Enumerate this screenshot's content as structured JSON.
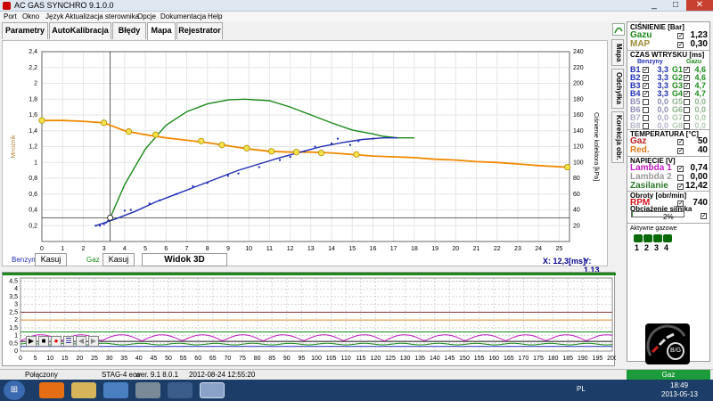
{
  "window": {
    "title": "AC GAS SYNCHRO  9.1.0.0",
    "min": "_",
    "max": "□",
    "close": "✕"
  },
  "menu": [
    "Port",
    "Okno",
    "Język",
    "Aktualizacja sterownika",
    "Opcje",
    "Dokumentacja",
    "Help"
  ],
  "tabs": [
    {
      "label": "Parametry"
    },
    {
      "label": "AutoKalibracja"
    },
    {
      "label": "Błędy"
    },
    {
      "label": "Mapa"
    },
    {
      "label": "Rejestrator"
    }
  ],
  "side_tabs": [
    {
      "label": "Mapa"
    },
    {
      "label": "Odchyłka"
    },
    {
      "label": "Korekcja obr."
    }
  ],
  "chart_data": {
    "type": "scatter",
    "xlabel": "Czas wtrysku [ms]",
    "ylabel": "Mnożnik",
    "y2label": "Ciśnienie kolektora [kPa]",
    "xlim": [
      0,
      25.5
    ],
    "ylim": [
      0,
      2.4
    ],
    "y2lim": [
      0,
      240
    ],
    "x_ticks": [
      "0",
      "1",
      "2",
      "3",
      "4",
      "5",
      "6",
      "7",
      "8",
      "9",
      "10",
      "11",
      "12",
      "13",
      "14",
      "15",
      "16",
      "17",
      "18",
      "19",
      "20",
      "21",
      "22",
      "23",
      "24",
      "25"
    ],
    "y_ticks": [
      "0,2",
      "0,4",
      "0,6",
      "0,8",
      "1",
      "1,2",
      "1,4",
      "1,6",
      "1,8",
      "2",
      "2,2",
      "2,4"
    ],
    "y2_ticks": [
      "20",
      "40",
      "60",
      "80",
      "100",
      "120",
      "140",
      "160",
      "180",
      "200",
      "220",
      "240"
    ],
    "cursor_x": 3.3,
    "ref_y": 0.3,
    "multiplier_curve": {
      "color": "#f08a00",
      "points": [
        [
          0,
          1.53
        ],
        [
          1,
          1.53
        ],
        [
          2,
          1.52
        ],
        [
          3,
          1.5
        ],
        [
          4,
          1.4
        ],
        [
          5,
          1.35
        ],
        [
          6,
          1.31
        ],
        [
          7,
          1.28
        ],
        [
          8,
          1.25
        ],
        [
          9,
          1.21
        ],
        [
          10,
          1.17
        ],
        [
          11,
          1.14
        ],
        [
          12,
          1.13
        ],
        [
          13,
          1.13
        ],
        [
          14,
          1.12
        ],
        [
          15,
          1.1
        ],
        [
          16,
          1.08
        ],
        [
          17,
          1.07
        ],
        [
          18,
          1.06
        ],
        [
          19,
          1.04
        ],
        [
          20,
          1.03
        ],
        [
          21,
          1.01
        ],
        [
          22,
          1.0
        ],
        [
          23,
          0.98
        ],
        [
          24,
          0.96
        ],
        [
          25.4,
          0.94
        ]
      ],
      "markers": [
        [
          0,
          1.53
        ],
        [
          3,
          1.5
        ],
        [
          4.2,
          1.39
        ],
        [
          5.5,
          1.35
        ],
        [
          7.7,
          1.27
        ],
        [
          8.7,
          1.22
        ],
        [
          9.9,
          1.18
        ],
        [
          11.1,
          1.14
        ],
        [
          12.3,
          1.13
        ],
        [
          13.5,
          1.12
        ],
        [
          15.2,
          1.1
        ],
        [
          25.4,
          0.94
        ]
      ]
    },
    "gas_curve": {
      "color": "#1a8a1a",
      "points": [
        [
          3.3,
          0.3
        ],
        [
          4,
          0.72
        ],
        [
          5,
          1.17
        ],
        [
          6,
          1.47
        ],
        [
          7,
          1.64
        ],
        [
          8,
          1.74
        ],
        [
          9,
          1.79
        ],
        [
          9.8,
          1.8
        ],
        [
          11,
          1.78
        ],
        [
          12,
          1.7
        ],
        [
          13,
          1.6
        ],
        [
          14,
          1.5
        ],
        [
          15,
          1.41
        ],
        [
          16,
          1.36
        ],
        [
          16.5,
          1.33
        ],
        [
          17.2,
          1.31
        ],
        [
          18,
          1.31
        ]
      ]
    },
    "petrol_curve": {
      "color": "#1f2db3",
      "points": [
        [
          2.6,
          0.2
        ],
        [
          3.5,
          0.28
        ],
        [
          4.5,
          0.38
        ],
        [
          5.5,
          0.5
        ],
        [
          6.5,
          0.6
        ],
        [
          7.5,
          0.7
        ],
        [
          8.5,
          0.8
        ],
        [
          9.5,
          0.9
        ],
        [
          10.5,
          0.98
        ],
        [
          11.5,
          1.06
        ],
        [
          12.5,
          1.13
        ],
        [
          13.5,
          1.2
        ],
        [
          14.5,
          1.25
        ],
        [
          15.5,
          1.29
        ],
        [
          16.5,
          1.31
        ],
        [
          17.2,
          1.31
        ]
      ]
    },
    "petrol_points": [
      [
        2.6,
        0.2
      ],
      [
        2.8,
        0.2
      ],
      [
        3.0,
        0.22
      ],
      [
        3.1,
        0.24
      ],
      [
        3.2,
        0.26
      ],
      [
        3.3,
        0.28
      ],
      [
        3.4,
        0.3
      ],
      [
        4.0,
        0.39
      ],
      [
        4.3,
        0.4
      ],
      [
        5.2,
        0.48
      ],
      [
        5.7,
        0.52
      ],
      [
        6.5,
        0.6
      ],
      [
        7.3,
        0.7
      ],
      [
        8.0,
        0.74
      ],
      [
        9.0,
        0.83
      ],
      [
        9.5,
        0.86
      ],
      [
        10.5,
        0.94
      ],
      [
        11.5,
        1.03
      ],
      [
        12.0,
        1.07
      ],
      [
        12.7,
        1.14
      ],
      [
        13.2,
        1.2
      ],
      [
        14.0,
        1.24
      ],
      [
        14.3,
        1.3
      ],
      [
        14.9,
        1.22
      ],
      [
        15.3,
        1.27
      ],
      [
        16.0,
        1.3
      ]
    ]
  },
  "legend": {
    "petrol_label": "Benzyna",
    "petrol_clear": "Kasuj",
    "gas_label": "Gaz",
    "gas_clear": "Kasuj",
    "view_3d": "Widok 3D",
    "x_readout": "X: 12,3[ms]",
    "y_readout": "Y: 1,13"
  },
  "oscilloscope": {
    "y_ticks": [
      "4,5",
      "4",
      "3,5",
      "3",
      "2,5",
      "2",
      "1,5",
      "1",
      "0,5",
      "0"
    ],
    "x_ticks": [
      "0",
      "5",
      "10",
      "15",
      "20",
      "25",
      "30",
      "35",
      "40",
      "45",
      "50",
      "55",
      "60",
      "65",
      "70",
      "75",
      "80",
      "85",
      "90",
      "95",
      "100",
      "105",
      "110",
      "115",
      "120",
      "125",
      "130",
      "135",
      "140",
      "145",
      "150",
      "155",
      "160",
      "165",
      "170",
      "175",
      "180",
      "185",
      "190",
      "195",
      "200"
    ],
    "xlim": [
      0,
      200
    ],
    "ylim": [
      0,
      4.7
    ]
  },
  "side": {
    "pressure_title": "CIŚNIENIE [Bar]",
    "gas_label": "Gazu",
    "gas_value": "1,23",
    "map_label": "MAP",
    "map_value": "0,30",
    "inj_title": "CZAS WTRYSKU [ms]",
    "col_petrol": "Benzyny",
    "col_gas": "Gazu",
    "injectors": [
      {
        "b": "B1",
        "bv": "3,3",
        "g": "G1",
        "gv": "4,6"
      },
      {
        "b": "B2",
        "bv": "3,3",
        "g": "G2",
        "gv": "4,6"
      },
      {
        "b": "B3",
        "bv": "3,3",
        "g": "G3",
        "gv": "4,7"
      },
      {
        "b": "B4",
        "bv": "3,3",
        "g": "G4",
        "gv": "4,7"
      },
      {
        "b": "B5",
        "bv": "0,0",
        "g": "G5",
        "gv": "0,0"
      },
      {
        "b": "B6",
        "bv": "0,0",
        "g": "G6",
        "gv": "0,0"
      },
      {
        "b": "B7",
        "bv": "0,0",
        "g": "G7",
        "gv": "0,0"
      },
      {
        "b": "B8",
        "bv": "0,0",
        "g": "G8",
        "gv": "0,0"
      }
    ],
    "temp_title": "TEMPERATURA [°C]",
    "temp_gas_label": "Gaz",
    "temp_gas_value": "50",
    "temp_red_label": "Red.",
    "temp_red_value": "40",
    "volt_title": "NAPIĘCIE [V]",
    "lambda1_label": "Lambda 1",
    "lambda1_value": "0,74",
    "lambda2_label": "Lambda 2",
    "lambda2_value": "0,00",
    "supply_label": "Zasilanie",
    "supply_value": "12,42",
    "rpm_title": "Obroty [obr/min]",
    "rpm_label": "RPM",
    "rpm_value": "740",
    "load_title": "Obciążenie silnika",
    "load_value": "2%",
    "load_fraction": 0.02,
    "active_title": "Aktywne gazowe",
    "active_nums": [
      "1",
      "2",
      "3",
      "4"
    ],
    "logo_text": "B/G"
  },
  "status": {
    "connection": "Połączony",
    "device": "STAG-4 eco",
    "version": "wer. 9.1  8.0.1",
    "datetime": "2012-08-24  12:55:20",
    "mode": "Gaz"
  },
  "taskbar": {
    "lang": "PL",
    "time": "18:49",
    "date": "2013-05-13",
    "start": "⊞"
  }
}
